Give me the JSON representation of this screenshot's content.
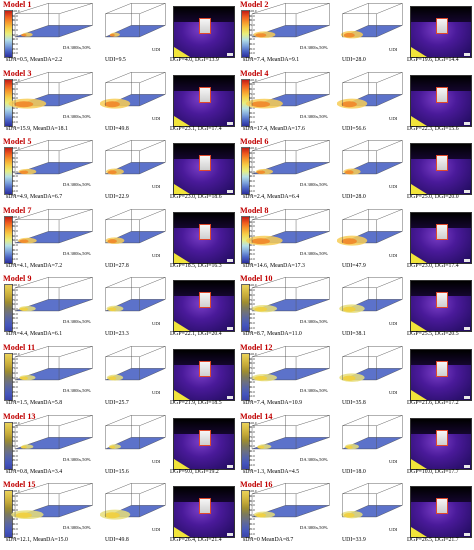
{
  "legend_ticks": [
    "100.0",
    "90.0",
    "80.0",
    "70.0",
    "60.0",
    "50.0",
    "40.0",
    "30.0",
    "20.0",
    "10.0",
    "0.0"
  ],
  "da_label": "DA 300lx,50%",
  "udi_label": "UDI",
  "colors": {
    "title": "#c00000",
    "floor_cool": "#4a63c4",
    "floor_warm": "#f2a23a"
  },
  "models": [
    {
      "title": "Model 1",
      "s": "sDA=0.5, MeanDA=2.2",
      "u": "UDI=9.5",
      "d": "DGP=4.0, DGI=13.9",
      "palette": "fire"
    },
    {
      "title": "Model 2",
      "s": "sDA=7.4, MeanDA=9.1",
      "u": "UDI=28.0",
      "d": "DGP=19.6, DGI=14.4",
      "palette": "fire"
    },
    {
      "title": "Model 3",
      "s": "sDA=15.9, MeanDA=18.1",
      "u": "UDI=49.8",
      "d": "DGP=23.1, DGI=17.4",
      "palette": "fire"
    },
    {
      "title": "Model 4",
      "s": "sDA=17.4, MeanDA=17.6",
      "u": "UDI=56.6",
      "d": "DGP=22.3, DGI=15.6",
      "palette": "fire"
    },
    {
      "title": "Model 5",
      "s": "sDA=4.9, MeanDA=6.7",
      "u": "UDI=22.9",
      "d": "DGP=23.0, DGI=18.6",
      "palette": "fire"
    },
    {
      "title": "Model 6",
      "s": "sDA=2.4, MeanDA=6.4",
      "u": "UDI=28.0",
      "d": "DGP=25.0, DGI=20.0",
      "palette": "fire"
    },
    {
      "title": "Model 7",
      "s": "sDA=4.1, MeanDA=7.2",
      "u": "UDI=27.8",
      "d": "DGP=18.5, DGI=16.3",
      "palette": "fire"
    },
    {
      "title": "Model 8",
      "s": "sDA=14.6, MeanDA=17.3",
      "u": "UDI=47.9",
      "d": "DGP=23.0, DGI=17.4",
      "palette": "fire"
    },
    {
      "title": "Model 9",
      "s": "sDA=4.4, MeanDA=6.1",
      "u": "UDI=23.3",
      "d": "DGP=22.1, DGI=20.4",
      "palette": "olive"
    },
    {
      "title": "Model 10",
      "s": "sDA=8.7, MeanDA=11.0",
      "u": "UDI=38.1",
      "d": "DGP=25.5, DGI=20.5",
      "palette": "olive"
    },
    {
      "title": "Model 11",
      "s": "sDA=1.5, MeanDA=5.8",
      "u": "UDI=25.7",
      "d": "DGP=21.9, DGI=18.5",
      "palette": "olive"
    },
    {
      "title": "Model 12",
      "s": "sDA=7.4, MeanDA=10.9",
      "u": "UDI=35.8",
      "d": "DGP=21.6, DGI=17.2",
      "palette": "olive"
    },
    {
      "title": "Model 13",
      "s": "sDA=0.8, MeanDA=3.4",
      "u": "UDI=15.6",
      "d": "DGP=9.0, DGI=19.2",
      "palette": "olive"
    },
    {
      "title": "Model 14",
      "s": "sDA=1.3, MeanDA=4.5",
      "u": "UDI=18.0",
      "d": "DGP=10.0, DGI=17.7",
      "palette": "olive"
    },
    {
      "title": "Model 15",
      "s": "sDA=12.1, MeanDA=15.0",
      "u": "UDI=49.8",
      "d": "DGP=26.4, DGI=21.4",
      "palette": "olive"
    },
    {
      "title": "Model 16",
      "s": "sDA=0 MeanDA=8.7",
      "u": "UDI=33.9",
      "d": "DGP=26.5, DGI=21.7",
      "palette": "olive"
    }
  ]
}
